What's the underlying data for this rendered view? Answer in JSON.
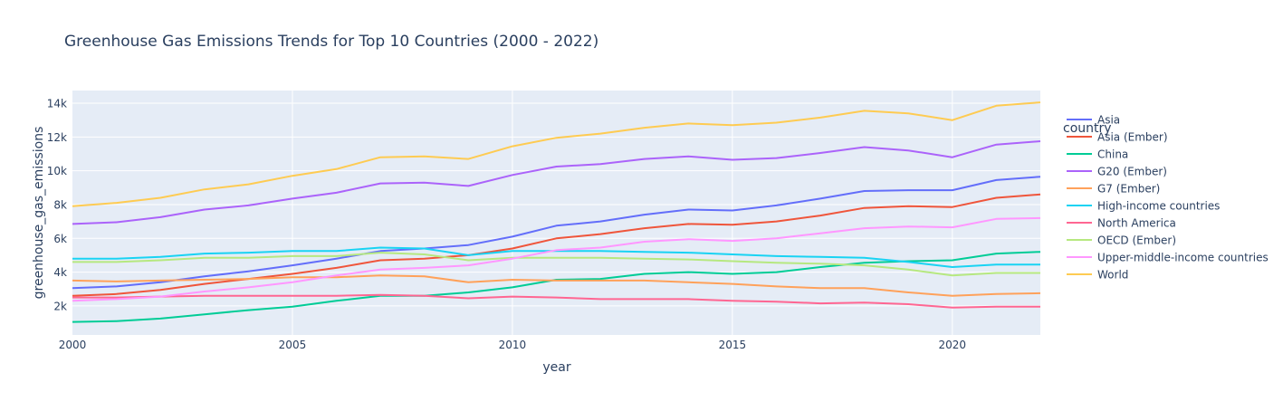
{
  "chart_data": {
    "type": "line",
    "title": "Greenhouse Gas Emissions Trends for Top 10 Countries (2000 - 2022)",
    "xlabel": "year",
    "ylabel": "greenhouse_gas_emissions",
    "xlim": [
      2000,
      2022
    ],
    "ylim": [
      280,
      14750
    ],
    "x_ticks": [
      2000,
      2005,
      2010,
      2015,
      2020
    ],
    "y_ticks": [
      2000,
      4000,
      6000,
      8000,
      10000,
      12000,
      14000
    ],
    "y_tick_labels": [
      "2k",
      "4k",
      "6k",
      "8k",
      "10k",
      "12k",
      "14k"
    ],
    "grid": true,
    "legend_title": "country",
    "legend_position": "right",
    "x": [
      2000,
      2001,
      2002,
      2003,
      2004,
      2005,
      2006,
      2007,
      2008,
      2009,
      2010,
      2011,
      2012,
      2013,
      2014,
      2015,
      2016,
      2017,
      2018,
      2019,
      2020,
      2021,
      2022
    ],
    "series": [
      {
        "name": "Asia",
        "color": "#636efa",
        "values": [
          3050,
          3150,
          3400,
          3750,
          4050,
          4400,
          4800,
          5250,
          5400,
          5600,
          6100,
          6750,
          7000,
          7400,
          7700,
          7650,
          7950,
          8350,
          8800,
          8850,
          8850,
          9450,
          9650
        ]
      },
      {
        "name": "Asia (Ember)",
        "color": "#ef553b",
        "values": [
          2600,
          2700,
          2950,
          3300,
          3600,
          3900,
          4250,
          4700,
          4800,
          5000,
          5400,
          6000,
          6250,
          6600,
          6850,
          6800,
          7000,
          7350,
          7800,
          7900,
          7850,
          8400,
          8600
        ]
      },
      {
        "name": "China",
        "color": "#00cc96",
        "values": [
          1050,
          1100,
          1250,
          1500,
          1750,
          1950,
          2300,
          2600,
          2600,
          2800,
          3100,
          3550,
          3600,
          3900,
          4000,
          3900,
          4000,
          4300,
          4550,
          4650,
          4700,
          5100,
          5200
        ]
      },
      {
        "name": "G20 (Ember)",
        "color": "#ab63fa",
        "values": [
          6850,
          6950,
          7250,
          7700,
          7950,
          8350,
          8700,
          9250,
          9300,
          9100,
          9750,
          10250,
          10400,
          10700,
          10850,
          10650,
          10750,
          11050,
          11400,
          11200,
          10800,
          11550,
          11750
        ]
      },
      {
        "name": "G7 (Ember)",
        "color": "#ffa15a",
        "values": [
          3500,
          3450,
          3500,
          3550,
          3600,
          3700,
          3700,
          3800,
          3750,
          3400,
          3550,
          3500,
          3500,
          3500,
          3400,
          3300,
          3150,
          3050,
          3050,
          2800,
          2600,
          2700,
          2750
        ]
      },
      {
        "name": "High-income countries",
        "color": "#19d3f3",
        "values": [
          4800,
          4800,
          4900,
          5100,
          5150,
          5250,
          5250,
          5450,
          5400,
          5000,
          5250,
          5250,
          5250,
          5200,
          5150,
          5050,
          4950,
          4900,
          4850,
          4600,
          4300,
          4450,
          4450
        ]
      },
      {
        "name": "North America",
        "color": "#ff6692",
        "values": [
          2500,
          2500,
          2550,
          2600,
          2600,
          2600,
          2600,
          2650,
          2600,
          2450,
          2550,
          2500,
          2400,
          2400,
          2400,
          2300,
          2250,
          2150,
          2200,
          2100,
          1900,
          1950,
          1950
        ]
      },
      {
        "name": "OECD (Ember)",
        "color": "#b6e880",
        "values": [
          4600,
          4600,
          4700,
          4850,
          4850,
          4950,
          4950,
          5150,
          5050,
          4700,
          4850,
          4850,
          4850,
          4800,
          4750,
          4650,
          4550,
          4500,
          4400,
          4150,
          3800,
          3950,
          3950
        ]
      },
      {
        "name": "Upper-middle-income countries",
        "color": "#ff97ff",
        "values": [
          2300,
          2400,
          2550,
          2850,
          3100,
          3400,
          3800,
          4150,
          4250,
          4400,
          4800,
          5300,
          5450,
          5800,
          5950,
          5850,
          6000,
          6300,
          6600,
          6700,
          6650,
          7150,
          7200
        ]
      },
      {
        "name": "World",
        "color": "#fecb52",
        "values": [
          7900,
          8100,
          8400,
          8900,
          9200,
          9700,
          10100,
          10800,
          10850,
          10700,
          11450,
          11950,
          12200,
          12550,
          12800,
          12700,
          12850,
          13150,
          13550,
          13400,
          13000,
          13850,
          14050
        ]
      }
    ]
  }
}
